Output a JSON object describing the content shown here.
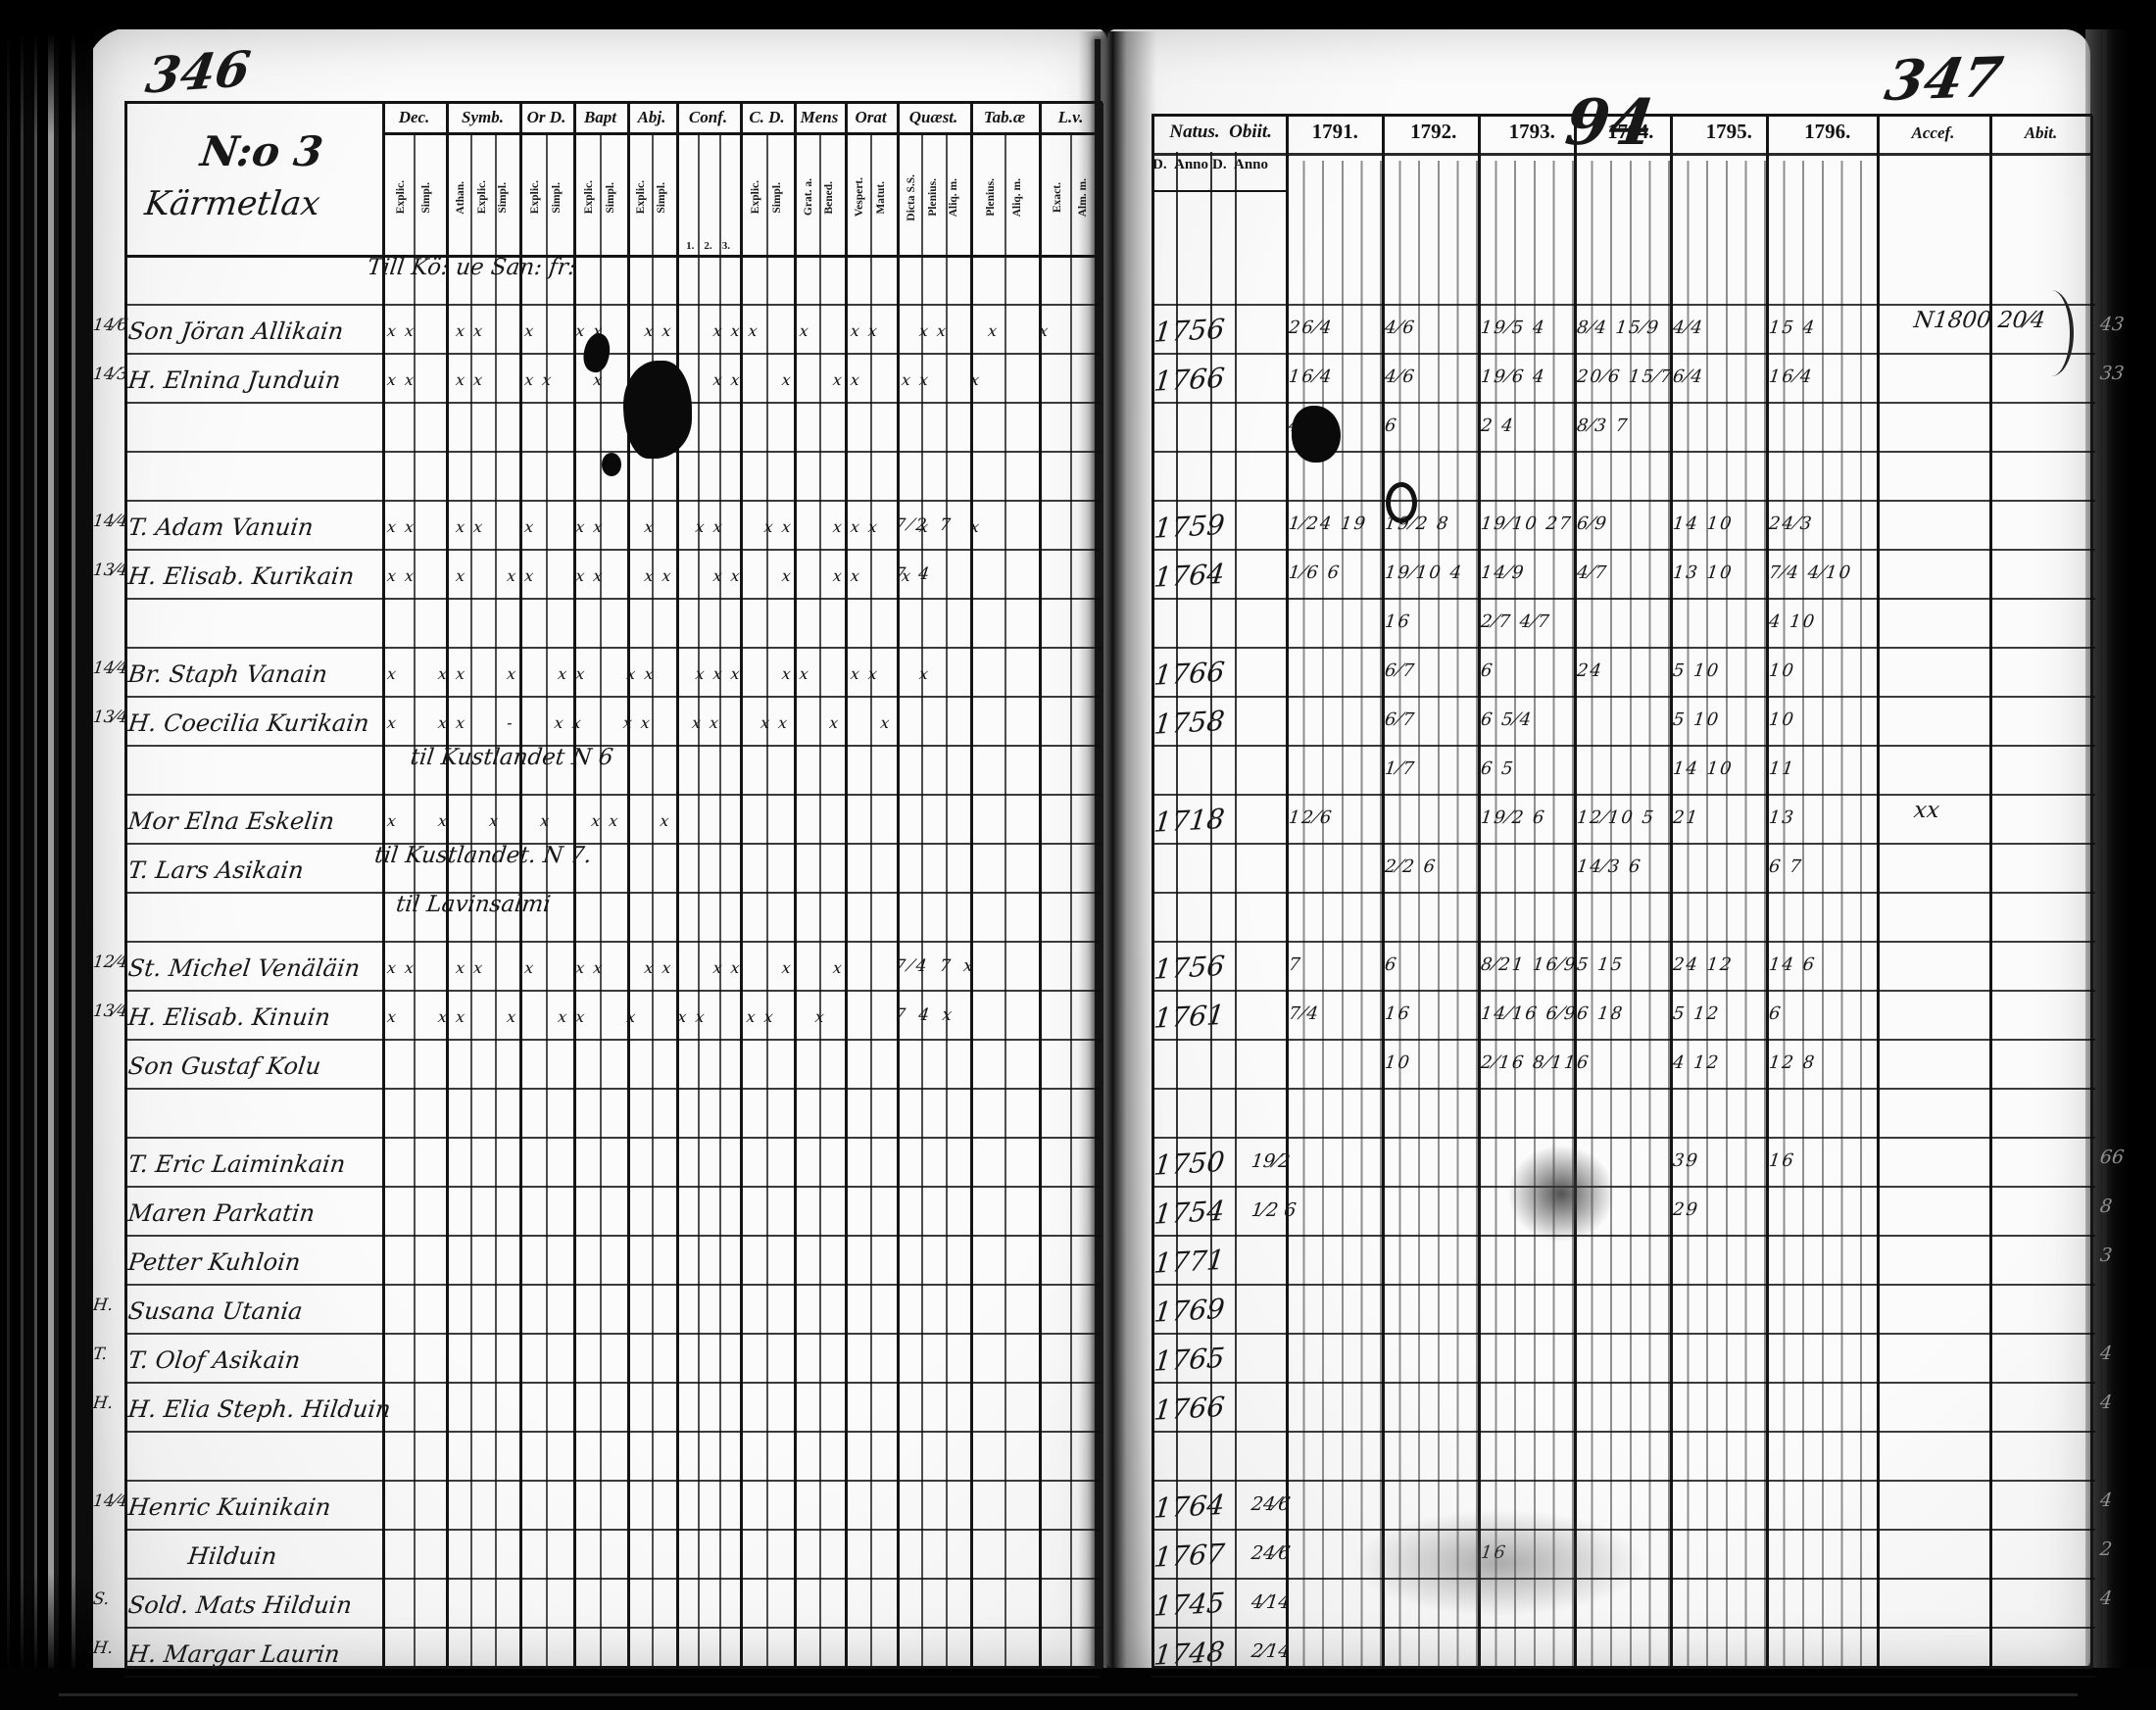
{
  "pages": {
    "left_number": "346",
    "right_number": "347"
  },
  "section": {
    "no": "N:o 3",
    "village": "Kärmetlax"
  },
  "left_headers": [
    {
      "label": "Dec.",
      "s1": "Explic.",
      "s2": "Simpl.",
      "s3": ""
    },
    {
      "label": "Symb.",
      "s1": "Athan.",
      "s2": "Explic.",
      "s3": "Simpl."
    },
    {
      "label": "Or D.",
      "s1": "Explic.",
      "s2": "Simpl.",
      "s3": ""
    },
    {
      "label": "Bapt",
      "s1": "Explic.",
      "s2": "Simpl.",
      "s3": ""
    },
    {
      "label": "Abj.",
      "s1": "Explic.",
      "s2": "Simpl.",
      "s3": ""
    },
    {
      "label": "Conf.",
      "s1": "1.",
      "s2": "2.",
      "s3": "3."
    },
    {
      "label": "C. D.",
      "s1": "Explic.",
      "s2": "Simpl.",
      "s3": ""
    },
    {
      "label": "Mens",
      "s1": "Grat. a.",
      "s2": "Bened.",
      "s3": ""
    },
    {
      "label": "Orat",
      "s1": "Vespert.",
      "s2": "Matut.",
      "s3": ""
    },
    {
      "label": "Quæst.",
      "s1": "Dicta S.S.",
      "s2": "Plenius.",
      "s3": "Aliq. m."
    },
    {
      "label": "Tab.æ",
      "s1": "Plenius.",
      "s2": "Aliq. m.",
      "s3": ""
    },
    {
      "label": "L.v.",
      "s1": "Exact.",
      "s2": "Alm. m.",
      "s3": ""
    }
  ],
  "right_headers": {
    "natus": "Natus.",
    "obiit": "Obiit.",
    "d": "D.",
    "anno": "Anno",
    "years": [
      "1791.",
      "1792.",
      "1793.",
      "1794.",
      "1795.",
      "1796."
    ],
    "year_overlay": "94",
    "accessit": "Accef.",
    "abiit": "Abit."
  },
  "rows": [
    {
      "note": "Till Kö: ue San: fr:"
    },
    {
      "m": "14⁄6",
      "name": "Son Jöran Allikain",
      "marks": "xx xx x xx xx xxx x xx xx x x",
      "natus": "1756",
      "y91": "26⁄4",
      "y92": "4⁄6",
      "y93": "19⁄5 4",
      "y94": "8⁄4 15⁄9",
      "y95": "4⁄4",
      "y96": "15 4",
      "abit": "N1800 20⁄4",
      "edge": "43"
    },
    {
      "m": "14⁄3",
      "name": "H. Elnina Junduin",
      "marks": "xx xx xx x xx xx x xx xx x",
      "natus": "1766",
      "y91": "16⁄4",
      "y92": "4⁄6",
      "y93": "19⁄6 4",
      "y94": "20⁄6 15⁄7",
      "y95": "6⁄4",
      "y96": "16⁄4",
      "edge": "33"
    },
    {
      "y91": "4",
      "y92": "6",
      "y93": "2 4",
      "y94": "8⁄3 7"
    },
    {},
    {
      "m": "14⁄4",
      "name": "T. Adam Vanuin",
      "marks": "xx xx x xx x xx xx xxx x x",
      "q": "7⁄2 7",
      "natus": "1759",
      "y91": "1⁄24 19",
      "y92": "19⁄2 8",
      "y93": "19⁄10 27",
      "y94": "6⁄9",
      "y95": "14 10",
      "y96": "24⁄3"
    },
    {
      "m": "13⁄4",
      "name": "H. Elisab. Kurikain",
      "marks": "xx x xx xx xx xx x xx x",
      "q": "7 4",
      "natus": "1764",
      "y91": "1⁄6 6",
      "y92": "19⁄10 4",
      "y93": "14⁄9",
      "y94": "4⁄7",
      "y95": "13 10",
      "y96": "7⁄4 4⁄10"
    },
    {
      "y92": "16",
      "y93": "2⁄7 4⁄7",
      "y96": "4 10"
    },
    {
      "m": "14⁄4",
      "name": "Br. Staph Vanain",
      "marks": "x xx x xx xx xxx xx xx x",
      "natus": "1766",
      "y92": "6⁄7",
      "y93": "6",
      "y94": "24",
      "y95": "5 10",
      "y96": "10"
    },
    {
      "m": "13⁄4",
      "name": "H. Coecilia Kurikain",
      "marks": "x xx - xx xx xx xx x x",
      "natus": "1758",
      "y92": "6⁄7",
      "y93": "6 5⁄4",
      "y95": "5 10",
      "y96": "10"
    },
    {
      "note": "      til Kustlandet N 6",
      "y92": "1⁄7",
      "y93": "6 5",
      "y95": "14 10",
      "y96": "11"
    },
    {
      "name": "Mor Elna Eskelin",
      "marks": "x  x  x   x  xx  x",
      "natus": "1718",
      "y91": "12⁄6",
      "y93": "19⁄2 6",
      "y94": "12⁄10 5",
      "y95": "21",
      "y96": "13",
      "abit": "xx"
    },
    {
      "name": "T. Lars Asikain",
      "note": " til Kustlandet. N 7.",
      "y92": "2⁄2 6",
      "y94": "14⁄3 6",
      "y96": "6 7"
    },
    {
      "note": "    til Lavinsalmi"
    },
    {
      "m": "12⁄4",
      "name": "St. Michel Venäläin",
      "marks": "xx xx x xx xx xx x x",
      "q": "7⁄4 7 x",
      "natus": "1756",
      "y91": "7",
      "y92": "6",
      "y93": "8⁄21 16⁄9",
      "y94": "5 15",
      "y95": "24 12",
      "y96": "14 6"
    },
    {
      "m": "13⁄4",
      "name": "H. Elisab. Kinuin",
      "marks": "x xx x xx x xx xx x",
      "q": "7 4 x",
      "natus": "1761",
      "y91": "7⁄4",
      "y92": "16",
      "y93": "14⁄16 6⁄9",
      "y94": "6 18",
      "y95": "5 12",
      "y96": "6"
    },
    {
      "name": "Son Gustaf Kolu",
      "y92": "10",
      "y93": "2⁄16 8⁄11",
      "y94": "6",
      "y95": "4 12",
      "y96": "12 8"
    },
    {},
    {
      "name": "T. Eric Laiminkain",
      "natus": "1750",
      "od": "19⁄2",
      "y95": "39",
      "y96": "16",
      "edge": "66"
    },
    {
      "name": "Maren Parkatin",
      "natus": "1754",
      "od": "1⁄2 6",
      "y95": "29",
      "edge": "8"
    },
    {
      "name": "Petter Kuhloin",
      "natus": "1771",
      "edge": "3"
    },
    {
      "m": "H.",
      "name": "Susana Utania",
      "natus": "1769"
    },
    {
      "m": "T.",
      "name": "T. Olof Asikain",
      "natus": "1765",
      "edge": "4"
    },
    {
      "m": "H.",
      "name": "H. Elia Steph. Hilduin",
      "natus": "1766",
      "edge": "4"
    },
    {},
    {
      "m": "14⁄4",
      "name": "Henric Kuinikain",
      "natus": "1764",
      "od": "24⁄6",
      "edge": "4"
    },
    {
      "name": "        Hilduin",
      "natus": "1767",
      "od": "24⁄6",
      "y93": "16",
      "edge": "2"
    },
    {
      "m": "S.",
      "name": "Sold. Mats Hilduin",
      "natus": "1745",
      "od": "4⁄14",
      "edge": "4"
    },
    {
      "m": "H.",
      "name": "H. Margar Laurin",
      "natus": "1748",
      "od": "2⁄14"
    }
  ]
}
